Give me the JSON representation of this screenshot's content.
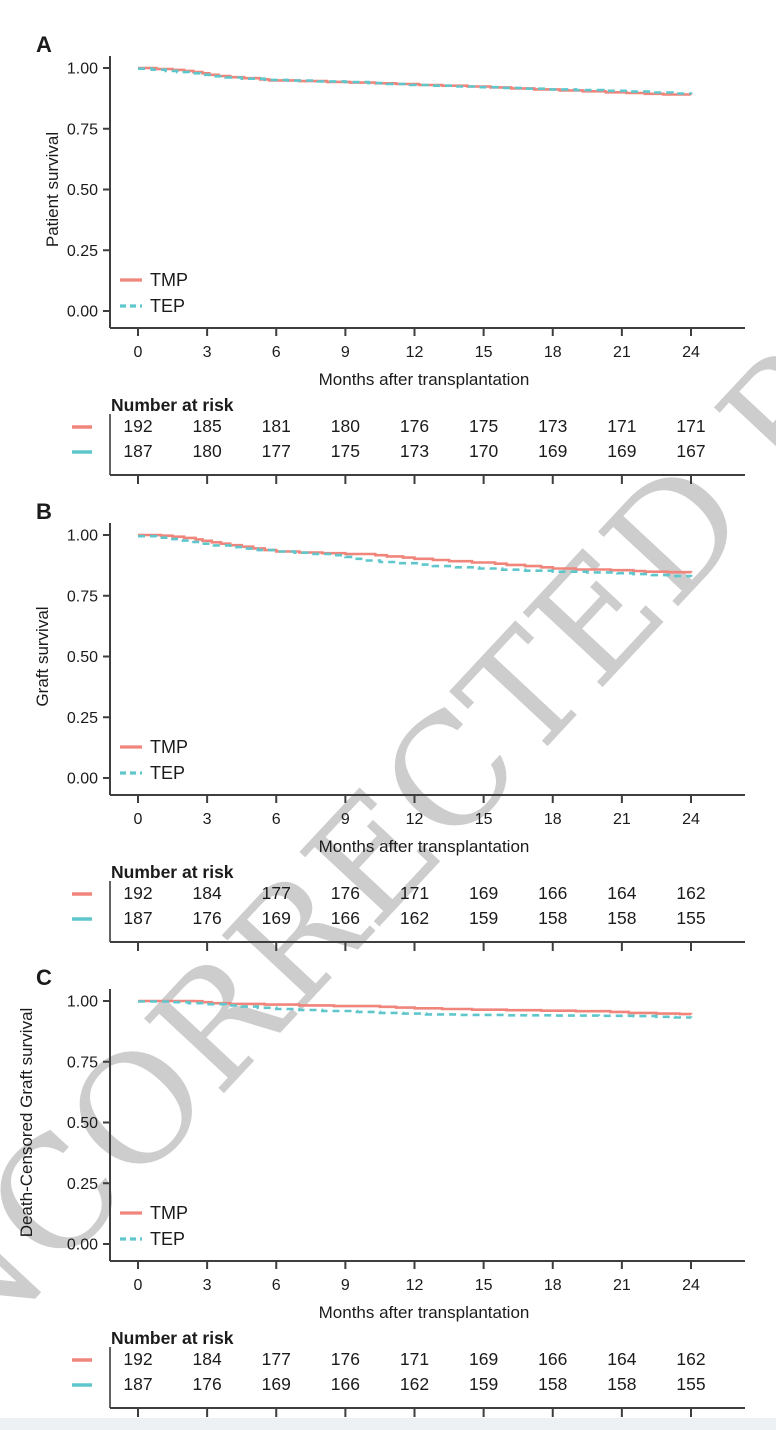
{
  "watermark": {
    "text": "UNCORRECTED PROOF",
    "color": "#cdcdcd"
  },
  "figure": {
    "x_label": "Months after transplantation",
    "risk_header": "Number at risk",
    "legend": [
      {
        "label": "TMP",
        "style": "solid",
        "color": "#f0857c"
      },
      {
        "label": "TEP",
        "style": "dashed",
        "color": "#5fc7cb"
      }
    ],
    "colors": {
      "tmp": "#f0857c",
      "tep": "#5fc7cb",
      "axis": "#3e3e3e",
      "text": "#1b1b1b",
      "strip": "#eef1f3"
    },
    "x_ticks": [
      "0",
      "3",
      "6",
      "9",
      "12",
      "15",
      "18",
      "21",
      "24"
    ],
    "y_ticks": [
      "0.00",
      "0.25",
      "0.50",
      "0.75",
      "1.00"
    ],
    "xlim": [
      0,
      24
    ],
    "ylim": [
      0,
      1
    ]
  },
  "chart_data": [
    {
      "panel": "A",
      "type": "line",
      "subtype": "kaplan-meier-step",
      "ylabel": "Patient survival",
      "xlabel": "Months after transplantation",
      "xlim": [
        0,
        24
      ],
      "ylim": [
        0,
        1
      ],
      "grid": false,
      "legend_position": "inside-bottom-left",
      "series": [
        {
          "name": "TMP",
          "style": "solid",
          "color": "#f0857c",
          "points": [
            [
              0,
              1.0
            ],
            [
              0.8,
              0.996
            ],
            [
              1.5,
              0.992
            ],
            [
              2.0,
              0.988
            ],
            [
              2.4,
              0.983
            ],
            [
              2.8,
              0.978
            ],
            [
              3.1,
              0.972
            ],
            [
              3.5,
              0.967
            ],
            [
              4.0,
              0.962
            ],
            [
              4.6,
              0.958
            ],
            [
              5.3,
              0.953
            ],
            [
              5.7,
              0.949
            ],
            [
              7.0,
              0.946
            ],
            [
              8.2,
              0.943
            ],
            [
              9.2,
              0.94
            ],
            [
              10.3,
              0.937
            ],
            [
              11.2,
              0.934
            ],
            [
              12.2,
              0.93
            ],
            [
              13.2,
              0.927
            ],
            [
              14.3,
              0.924
            ],
            [
              15.3,
              0.92
            ],
            [
              16.2,
              0.916
            ],
            [
              17.2,
              0.912
            ],
            [
              18.3,
              0.908
            ],
            [
              19.3,
              0.904
            ],
            [
              20.3,
              0.9
            ],
            [
              21.2,
              0.897
            ],
            [
              22.0,
              0.894
            ],
            [
              22.8,
              0.891
            ],
            [
              24,
              0.89
            ]
          ]
        },
        {
          "name": "TEP",
          "style": "dashed",
          "color": "#5fc7cb",
          "points": [
            [
              0,
              0.997
            ],
            [
              0.6,
              0.993
            ],
            [
              1.2,
              0.988
            ],
            [
              1.7,
              0.983
            ],
            [
              2.2,
              0.978
            ],
            [
              2.7,
              0.972
            ],
            [
              3.2,
              0.966
            ],
            [
              3.8,
              0.961
            ],
            [
              4.5,
              0.956
            ],
            [
              5.5,
              0.951
            ],
            [
              6.5,
              0.948
            ],
            [
              7.8,
              0.945
            ],
            [
              9.0,
              0.942
            ],
            [
              10.0,
              0.938
            ],
            [
              10.8,
              0.934
            ],
            [
              11.8,
              0.93
            ],
            [
              12.8,
              0.927
            ],
            [
              13.8,
              0.924
            ],
            [
              14.8,
              0.921
            ],
            [
              15.8,
              0.918
            ],
            [
              16.8,
              0.915
            ],
            [
              17.8,
              0.912
            ],
            [
              19.0,
              0.909
            ],
            [
              20.2,
              0.906
            ],
            [
              21.3,
              0.903
            ],
            [
              22.3,
              0.899
            ],
            [
              23.2,
              0.895
            ],
            [
              24,
              0.893
            ]
          ]
        }
      ],
      "number_at_risk": {
        "times": [
          0,
          3,
          6,
          9,
          12,
          15,
          18,
          21,
          24
        ],
        "TMP": [
          "192",
          "185",
          "181",
          "180",
          "176",
          "175",
          "173",
          "171",
          "171"
        ],
        "TEP": [
          "187",
          "180",
          "177",
          "175",
          "173",
          "170",
          "169",
          "169",
          "167"
        ]
      }
    },
    {
      "panel": "B",
      "type": "line",
      "subtype": "kaplan-meier-step",
      "ylabel": "Graft survival",
      "xlabel": "Months after transplantation",
      "xlim": [
        0,
        24
      ],
      "ylim": [
        0,
        1
      ],
      "grid": false,
      "legend_position": "inside-bottom-left",
      "series": [
        {
          "name": "TMP",
          "style": "solid",
          "color": "#f0857c",
          "points": [
            [
              0,
              1.0
            ],
            [
              1.0,
              0.997
            ],
            [
              1.5,
              0.993
            ],
            [
              2.0,
              0.988
            ],
            [
              2.5,
              0.982
            ],
            [
              2.8,
              0.976
            ],
            [
              3.2,
              0.97
            ],
            [
              3.6,
              0.964
            ],
            [
              4.0,
              0.958
            ],
            [
              4.5,
              0.952
            ],
            [
              5.0,
              0.945
            ],
            [
              5.5,
              0.938
            ],
            [
              6.0,
              0.932
            ],
            [
              7.0,
              0.928
            ],
            [
              8.0,
              0.925
            ],
            [
              9.0,
              0.922
            ],
            [
              10.3,
              0.917
            ],
            [
              10.8,
              0.912
            ],
            [
              11.5,
              0.907
            ],
            [
              12.0,
              0.902
            ],
            [
              12.8,
              0.897
            ],
            [
              13.5,
              0.892
            ],
            [
              14.5,
              0.887
            ],
            [
              15.5,
              0.882
            ],
            [
              16.0,
              0.877
            ],
            [
              16.8,
              0.872
            ],
            [
              17.5,
              0.867
            ],
            [
              18.0,
              0.862
            ],
            [
              19.0,
              0.858
            ],
            [
              20.5,
              0.855
            ],
            [
              21.5,
              0.852
            ],
            [
              22.0,
              0.849
            ],
            [
              23.0,
              0.847
            ],
            [
              24,
              0.845
            ]
          ]
        },
        {
          "name": "TEP",
          "style": "dashed",
          "color": "#5fc7cb",
          "points": [
            [
              0,
              0.995
            ],
            [
              0.8,
              0.989
            ],
            [
              1.3,
              0.983
            ],
            [
              1.8,
              0.977
            ],
            [
              2.3,
              0.971
            ],
            [
              2.8,
              0.964
            ],
            [
              3.3,
              0.957
            ],
            [
              4.0,
              0.95
            ],
            [
              4.6,
              0.944
            ],
            [
              5.2,
              0.938
            ],
            [
              6.0,
              0.932
            ],
            [
              6.8,
              0.927
            ],
            [
              7.5,
              0.922
            ],
            [
              8.5,
              0.917
            ],
            [
              9.0,
              0.91
            ],
            [
              9.4,
              0.902
            ],
            [
              9.8,
              0.895
            ],
            [
              10.5,
              0.889
            ],
            [
              11.3,
              0.884
            ],
            [
              12.2,
              0.878
            ],
            [
              12.8,
              0.872
            ],
            [
              13.8,
              0.867
            ],
            [
              14.8,
              0.862
            ],
            [
              15.8,
              0.857
            ],
            [
              16.8,
              0.853
            ],
            [
              18.0,
              0.849
            ],
            [
              19.5,
              0.846
            ],
            [
              20.8,
              0.843
            ],
            [
              21.5,
              0.839
            ],
            [
              22.3,
              0.835
            ],
            [
              23.2,
              0.831
            ],
            [
              24,
              0.828
            ]
          ]
        }
      ],
      "number_at_risk": {
        "times": [
          0,
          3,
          6,
          9,
          12,
          15,
          18,
          21,
          24
        ],
        "TMP": [
          "192",
          "184",
          "177",
          "176",
          "171",
          "169",
          "166",
          "164",
          "162"
        ],
        "TEP": [
          "187",
          "176",
          "169",
          "166",
          "162",
          "159",
          "158",
          "158",
          "155"
        ]
      }
    },
    {
      "panel": "C",
      "type": "line",
      "subtype": "kaplan-meier-step",
      "ylabel": "Death-Censored Graft survival",
      "xlabel": "Months after transplantation",
      "xlim": [
        0,
        24
      ],
      "ylim": [
        0,
        1
      ],
      "grid": false,
      "legend_position": "inside-bottom-left",
      "series": [
        {
          "name": "TMP",
          "style": "solid",
          "color": "#f0857c",
          "points": [
            [
              0,
              1.0
            ],
            [
              2.5,
              0.999
            ],
            [
              2.8,
              0.995
            ],
            [
              3.2,
              0.991
            ],
            [
              4.0,
              0.988
            ],
            [
              5.5,
              0.985
            ],
            [
              7.0,
              0.982
            ],
            [
              8.5,
              0.979
            ],
            [
              10.5,
              0.976
            ],
            [
              11.2,
              0.973
            ],
            [
              12.0,
              0.97
            ],
            [
              13.2,
              0.967
            ],
            [
              14.5,
              0.964
            ],
            [
              16.0,
              0.962
            ],
            [
              17.5,
              0.96
            ],
            [
              19.0,
              0.958
            ],
            [
              20.5,
              0.955
            ],
            [
              21.3,
              0.951
            ],
            [
              22.5,
              0.948
            ],
            [
              23.5,
              0.946
            ],
            [
              24,
              0.945
            ]
          ]
        },
        {
          "name": "TEP",
          "style": "dashed",
          "color": "#5fc7cb",
          "points": [
            [
              0,
              0.998
            ],
            [
              1.5,
              0.995
            ],
            [
              2.2,
              0.991
            ],
            [
              3.0,
              0.987
            ],
            [
              3.8,
              0.982
            ],
            [
              4.5,
              0.977
            ],
            [
              5.2,
              0.972
            ],
            [
              6.0,
              0.967
            ],
            [
              7.0,
              0.963
            ],
            [
              8.0,
              0.959
            ],
            [
              9.5,
              0.955
            ],
            [
              10.5,
              0.951
            ],
            [
              11.5,
              0.948
            ],
            [
              12.5,
              0.945
            ],
            [
              14.0,
              0.943
            ],
            [
              16.0,
              0.941
            ],
            [
              18.0,
              0.94
            ],
            [
              20.0,
              0.939
            ],
            [
              21.5,
              0.938
            ],
            [
              22.5,
              0.935
            ],
            [
              23.3,
              0.932
            ],
            [
              24,
              0.931
            ]
          ]
        }
      ],
      "number_at_risk": {
        "times": [
          0,
          3,
          6,
          9,
          12,
          15,
          18,
          21,
          24
        ],
        "TMP": [
          "192",
          "184",
          "177",
          "176",
          "171",
          "169",
          "166",
          "164",
          "162"
        ],
        "TEP": [
          "187",
          "176",
          "169",
          "166",
          "162",
          "159",
          "158",
          "158",
          "155"
        ]
      }
    }
  ]
}
